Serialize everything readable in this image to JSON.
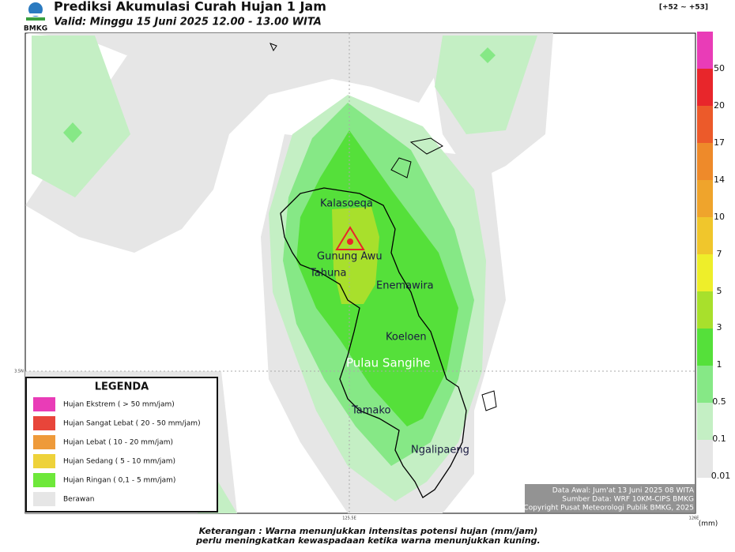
{
  "header": {
    "logo": "BMKG",
    "title": "Prediksi Akumulasi Curah Hujan 1 Jam",
    "valid": "Valid: Minggu 15 Juni 2025 12.00 - 13.00 WITA",
    "range": "[+52 ~ +53]"
  },
  "places": [
    "Kalasoeqa",
    "Gunung Awu",
    "Tahuna",
    "Enemawira",
    "Koeloen",
    "Pulau Sangihe",
    "Tamako",
    "Ngalipaeng"
  ],
  "axis_labels": [
    "125.5E",
    "126E",
    "3.5N"
  ],
  "colorbar": {
    "labels": [
      "50",
      "20",
      "17",
      "14",
      "10",
      "7",
      "5",
      "3",
      "1",
      "0.5",
      "0.1",
      "0.01"
    ],
    "unit": "(mm)"
  },
  "legend": {
    "title": "LEGENDA",
    "items": [
      "Hujan Ekstrem ( > 50 mm/jam)",
      "Hujan Sangat Lebat ( 20 - 50 mm/jam)",
      "Hujan Lebat ( 10 - 20 mm/jam)",
      "Hujan Sedang ( 5 - 10 mm/jam)",
      "Hujan Ringan ( 0,1 - 5 mm/jam)",
      "Berawan"
    ]
  },
  "info": [
    "Data Awal: Jum'at 13 Juni 2025 08 WITA",
    "Sumber Data: WRF 10KM-CIPS BMKG",
    "Copyright Pusat Meteorologi Publik BMKG, 2025"
  ],
  "footer": [
    "Keterangan : Warna menunjukkan intensitas potensi hujan (mm/jam)",
    "perlu meningkatkan kewaspadaan ketika warna menunjukkan kuning."
  ]
}
